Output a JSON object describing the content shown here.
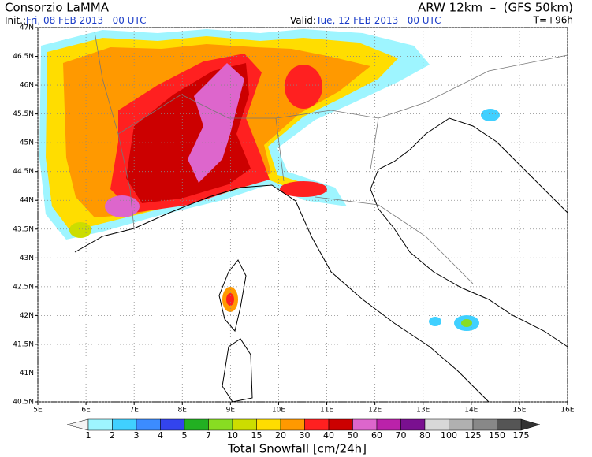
{
  "header": {
    "title": "Consorzio LaMMA",
    "model": "ARW 12km  –  (GFS 50km)",
    "init_label": "Init.:",
    "init": "Fri, 08 FEB 2013   00 UTC",
    "valid_label": "Valid:",
    "valid": "Tue, 12 FEB 2013   00 UTC",
    "lead": "T=+96h"
  },
  "map": {
    "lon_labels": [
      "5E",
      "6E",
      "7E",
      "8E",
      "9E",
      "10E",
      "11E",
      "12E",
      "13E",
      "14E",
      "15E",
      "16E"
    ],
    "lat_labels": [
      "47N",
      "46.5N",
      "46N",
      "45.5N",
      "45N",
      "44.5N",
      "44N",
      "43.5N",
      "43N",
      "42.5N",
      "42N",
      "41.5N",
      "41N",
      "40.5N"
    ]
  },
  "legend": {
    "title": "Total Snowfall [cm/24h]",
    "levels": [
      1,
      2,
      3,
      4,
      5,
      7,
      10,
      15,
      20,
      30,
      40,
      50,
      60,
      70,
      80,
      100,
      125,
      150,
      175
    ],
    "colors": [
      "#9ef5ff",
      "#40d0ff",
      "#3c8cff",
      "#3344ee",
      "#22b022",
      "#88dd22",
      "#ccdd00",
      "#ffdd00",
      "#ff9900",
      "#ff2020",
      "#cc0000",
      "#dd66cc",
      "#bb22aa",
      "#7a1090",
      "#d8d8d8",
      "#b0b0b0",
      "#888888",
      "#555555"
    ]
  }
}
